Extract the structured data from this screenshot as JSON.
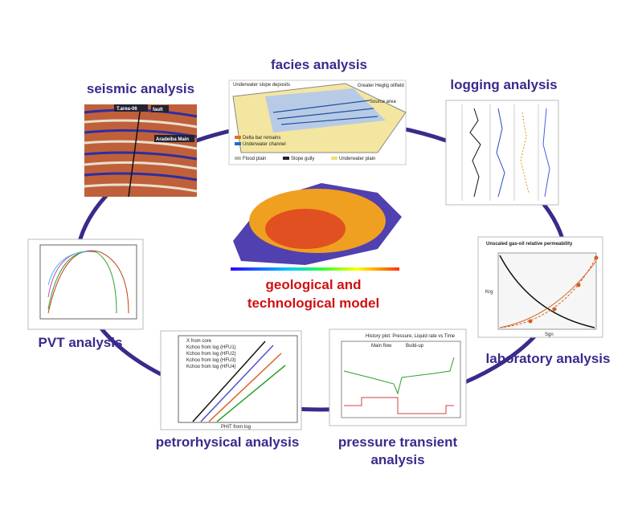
{
  "nodes": [
    {
      "label": "seismic analysis",
      "texts": [
        "T.area-06",
        "fault",
        "Aradeiba Main"
      ]
    },
    {
      "label": "facies analysis",
      "texts": [
        "Underwater slope deposits",
        "Greater Heglig oilfield",
        "Source area",
        "Delta bar remains",
        "Underwater channel",
        "Flood plain",
        "Slope gully",
        "Underwater plain"
      ]
    },
    {
      "label": "logging analysis",
      "texts": []
    },
    {
      "label": "laboratory analysis",
      "texts": [
        "Unscaled gas-oil relative permeability",
        "Sgn",
        "Krg"
      ]
    },
    {
      "label": "pressure transient analysis",
      "texts": [
        "History plot: Pressure, Liquid rate vs Time",
        "Main flow",
        "Build-up"
      ]
    },
    {
      "label": "petrorhysical analysis",
      "texts": [
        "X from core",
        "Kchoo from log (HFU1)",
        "Kchoo from log (HFU2)",
        "Kchoo from log (HFU3)",
        "Kchoo from log (HFU4)",
        "PHIT from log"
      ]
    },
    {
      "label": "PVT analysis",
      "texts": []
    }
  ],
  "center": {
    "label_lines": [
      "geological and",
      "technological model"
    ]
  }
}
